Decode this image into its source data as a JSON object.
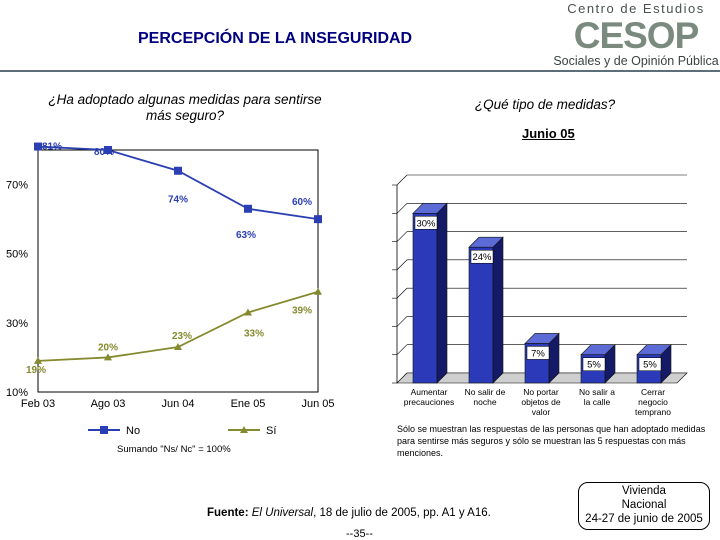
{
  "title": "PERCEPCIÓN DE LA INSEGURIDAD",
  "logo": {
    "line1": "Centro de Estudios",
    "mark": "CESOP",
    "line2": "Sociales y de Opinión Pública",
    "color": "#7a8a7e"
  },
  "question_left": "¿Ha adoptado algunas medidas para sentirse más seguro?",
  "question_right": "¿Qué tipo de medidas?",
  "period": "Junio 05",
  "chart_data": [
    {
      "type": "line",
      "x": [
        "Feb 03",
        "Ago 03",
        "Jun 04",
        "Ene 05",
        "Jun 05"
      ],
      "series": [
        {
          "name": "No",
          "values": [
            81,
            80,
            74,
            63,
            60
          ],
          "labels": [
            "81%",
            "80%",
            "74%",
            "63%",
            "60%"
          ],
          "color": "#2b3fb3"
        },
        {
          "name": "Sí",
          "values": [
            19,
            20,
            23,
            33,
            39
          ],
          "labels": [
            "19%",
            "20%",
            "23%",
            "33%",
            "39%"
          ],
          "color": "#858a2e"
        }
      ],
      "yticks": [
        10,
        30,
        50,
        70
      ],
      "ytick_labels": [
        "10%",
        "30%",
        "50%",
        "70%"
      ],
      "ylim": [
        10,
        80
      ],
      "legend": "bottom",
      "grid": false
    },
    {
      "type": "bar",
      "categories": [
        "Aumentar precauciones",
        "No salir de noche",
        "No portar objetos de valor",
        "No salir a la calle",
        "Cerrar negocio temprano"
      ],
      "values": [
        30,
        24,
        7,
        5,
        5
      ],
      "labels": [
        "30%",
        "24%",
        "7%",
        "5%",
        "5%"
      ],
      "ylim": [
        0,
        35
      ],
      "grid": true,
      "color": "#2b3ab8"
    }
  ],
  "footnote_left": "Sumando \"Ns/ Nc\" = 100%",
  "footnote_right": "Sólo se muestran las respuestas de las personas que han adoptado medidas para sentirse más seguros y sólo se muestran las 5 respuestas con más menciones.",
  "source": {
    "label": "Fuente:",
    "publication": "El Universal",
    "rest": ", 18 de julio de 2005, pp. A1 y A16."
  },
  "page_number": "--35--",
  "note_box": [
    "Vivienda",
    "Nacional",
    "24-27 de junio de 2005"
  ]
}
